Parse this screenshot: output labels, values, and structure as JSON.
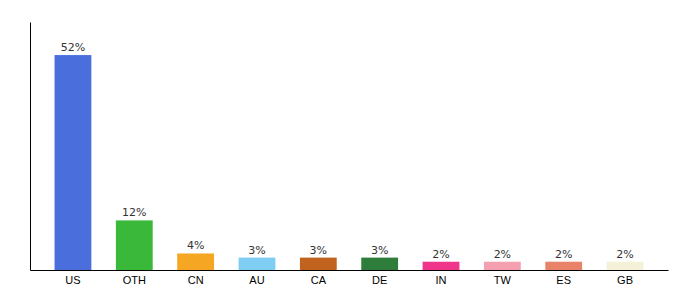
{
  "chart_data": {
    "type": "bar",
    "categories": [
      "US",
      "OTH",
      "CN",
      "AU",
      "CA",
      "DE",
      "IN",
      "TW",
      "ES",
      "GB"
    ],
    "values": [
      52,
      12,
      4,
      3,
      3,
      3,
      2,
      2,
      2,
      2
    ],
    "value_labels": [
      "52%",
      "12%",
      "4%",
      "3%",
      "3%",
      "3%",
      "2%",
      "2%",
      "2%",
      "2%"
    ],
    "colors": [
      "#4a6fdc",
      "#3ab83a",
      "#f5a623",
      "#7ecef4",
      "#c0631e",
      "#2e7d3b",
      "#f0368a",
      "#f4a0b0",
      "#e8836a",
      "#f5f0d8"
    ],
    "ylim": [
      0,
      60
    ],
    "grid": false,
    "data_labels": true,
    "tick_labels": "x"
  }
}
